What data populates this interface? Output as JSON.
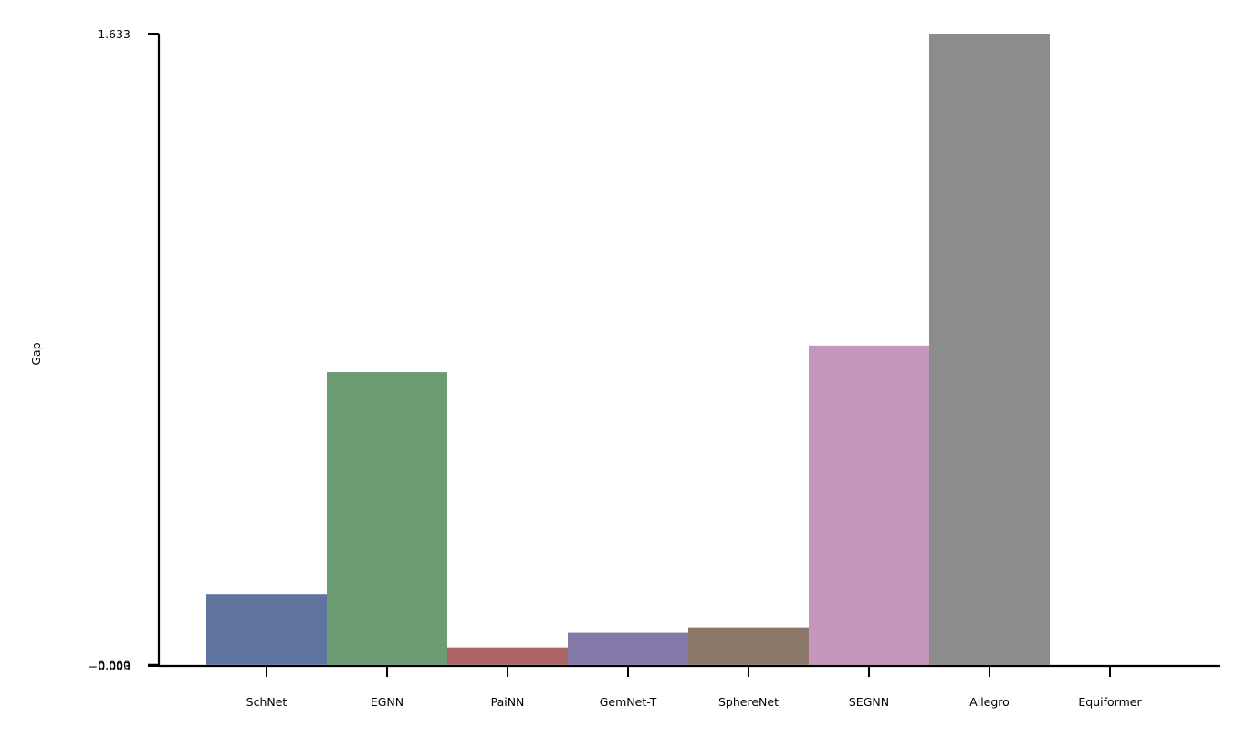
{
  "chart_data": {
    "type": "bar",
    "title": "",
    "xlabel": "",
    "ylabel": "Gap",
    "categories": [
      "SchNet",
      "EGNN",
      "PaiNN",
      "GemNet-T",
      "SphereNet",
      "SEGNN",
      "Allegro",
      "Equiformer"
    ],
    "values": [
      0.183,
      0.757,
      0.045,
      0.083,
      0.097,
      0.826,
      1.633,
      0.0
    ],
    "colors": [
      "#6074a0",
      "#6c9c71",
      "#ac6462",
      "#8479a8",
      "#8b7868",
      "#c697bc",
      "#8c8c8c",
      "#c6b56f"
    ],
    "ylim": [
      -0.003,
      1.633
    ],
    "yticks": [
      {
        "value": -0.003,
        "label": "−0.003"
      },
      {
        "value": 0.0,
        "label": "0.000"
      },
      {
        "value": 1.633,
        "label": "1.633"
      }
    ],
    "grid": false,
    "legend": "none"
  }
}
